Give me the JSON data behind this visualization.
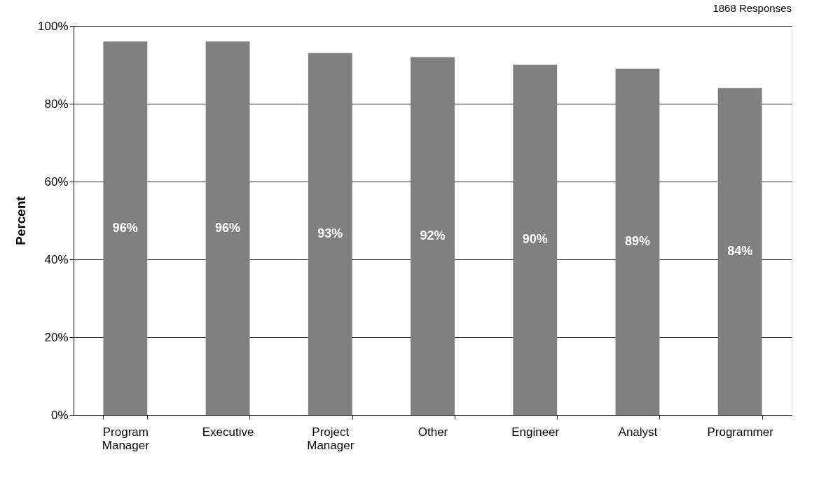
{
  "chart_data": {
    "type": "bar",
    "ylabel": "Percent",
    "annotations": [
      "1868 Responses"
    ],
    "categories": [
      "Program Manager",
      "Executive",
      "Project Manager",
      "Other",
      "Engineer",
      "Analyst",
      "Programmer"
    ],
    "values": [
      96,
      96,
      93,
      92,
      90,
      89,
      84
    ],
    "value_labels": [
      "96%",
      "96%",
      "93%",
      "92%",
      "90%",
      "89%",
      "84%"
    ],
    "color": "#808080",
    "ylim": [
      0,
      100
    ],
    "yticks": [
      {
        "value": 0,
        "label": "0%"
      },
      {
        "value": 20,
        "label": "20%"
      },
      {
        "value": 40,
        "label": "40%"
      },
      {
        "value": 60,
        "label": "60%"
      },
      {
        "value": 80,
        "label": "80%"
      },
      {
        "value": 100,
        "label": "100%"
      }
    ],
    "grid": "y"
  }
}
